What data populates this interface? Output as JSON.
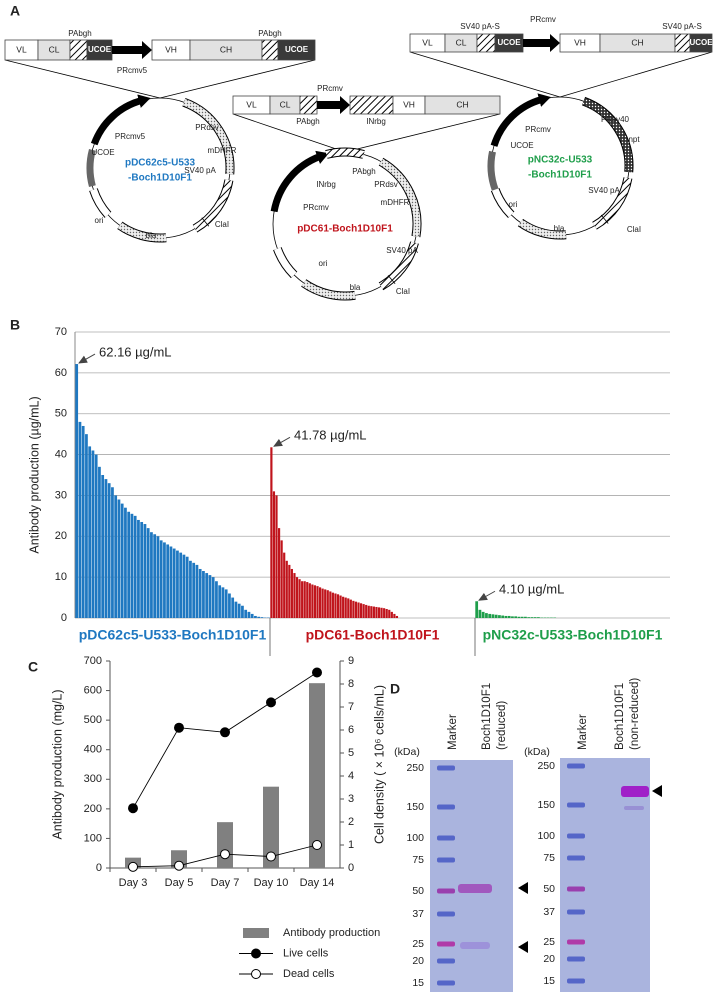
{
  "panel_labels": [
    "A",
    "B",
    "C",
    "D"
  ],
  "diagram": {
    "plasmids": [
      {
        "name": [
          "pDC62c5-U533",
          "-Boch1D10F1"
        ],
        "color": "#1f78c1",
        "cassette": [
          "VL",
          "CL",
          "UCOE",
          "VH",
          "CH",
          "UCOE"
        ],
        "cassette_labels": [
          "PAbgh",
          "PAbgh",
          "PRcmv5"
        ],
        "map_labels": [
          "PRcmv5",
          "PRdsv",
          "UCOE",
          "mDHFR",
          "SV40 pA",
          "ori",
          "bla",
          "ClaI"
        ]
      },
      {
        "name": [
          "pDC61-Boch1D10F1"
        ],
        "color": "#c0141c",
        "cassette": [
          "VL",
          "CL",
          "VH",
          "CH"
        ],
        "cassette_labels": [
          "PRcmv",
          "PAbgh",
          "INrbg"
        ],
        "map_labels": [
          "PAbgh",
          "INrbg",
          "PRdsv",
          "mDHFR",
          "PRcmv",
          "SV40 pA",
          "ori",
          "bla",
          "ClaI"
        ]
      },
      {
        "name": [
          "pNC32c-U533",
          "-Boch1D10F1"
        ],
        "color": "#1e9e4a",
        "cassette": [
          "VL",
          "CL",
          "UCOE",
          "VH",
          "CH",
          "UCOE"
        ],
        "cassette_labels": [
          "SV40 pA-S",
          "PRcmv",
          "SV40 pA-S"
        ],
        "map_labels": [
          "PRcmv",
          "PRsv40",
          "npt",
          "UCOE",
          "SV40 pA",
          "ori",
          "bla",
          "ClaI"
        ]
      }
    ]
  },
  "chart_data": [
    {
      "type": "bar",
      "ylabel": "Antibody production (µg/mL)",
      "ylim": [
        0,
        70
      ],
      "yticks": [
        0,
        10,
        20,
        30,
        40,
        50,
        60,
        70
      ],
      "grid": true,
      "annotations": [
        "62.16 µg/mL",
        "41.78 µg/mL",
        "4.10 µg/mL"
      ],
      "series": [
        {
          "name": "pDC62c5-U533-Boch1D10F1",
          "color": "#1f78c1",
          "values": [
            62.16,
            48,
            47,
            45,
            42,
            41,
            40,
            37,
            35,
            34,
            33,
            32,
            30,
            29,
            28,
            27,
            26,
            25.5,
            25,
            24,
            23.5,
            23,
            22,
            21,
            20.5,
            20,
            19,
            18.5,
            18,
            17.5,
            17,
            16.5,
            16,
            15.5,
            15,
            14,
            13.5,
            13,
            12,
            11.5,
            11,
            10.5,
            10,
            9,
            8,
            7.5,
            7,
            6,
            5,
            4,
            3.5,
            3,
            2,
            1.5,
            1,
            0.5,
            0.3,
            0.2,
            0.1,
            0.1
          ]
        },
        {
          "name": "pDC61-Boch1D10F1",
          "color": "#c0141c",
          "values": [
            41.78,
            31,
            30,
            22,
            19,
            16,
            14,
            13,
            12,
            11,
            10,
            9.5,
            9,
            9,
            8.8,
            8.5,
            8.2,
            8,
            7.8,
            7.5,
            7.2,
            7,
            6.8,
            6.5,
            6.2,
            6,
            5.8,
            5.5,
            5.2,
            5,
            4.8,
            4.5,
            4.2,
            4,
            3.8,
            3.6,
            3.4,
            3.2,
            3,
            2.9,
            2.8,
            2.7,
            2.6,
            2.5,
            2.4,
            2.2,
            2,
            1.5,
            1,
            0.5,
            0,
            0,
            0,
            0,
            0,
            0,
            0,
            0,
            0,
            0,
            0,
            0,
            0,
            0,
            0,
            0,
            0,
            0,
            0,
            0,
            0,
            0,
            0,
            0,
            0,
            0,
            0,
            0,
            0,
            0
          ]
        },
        {
          "name": "pNC32c-U533-Boch1D10F1",
          "color": "#1e9e4a",
          "values": [
            4.1,
            2,
            1.5,
            1.2,
            1,
            0.9,
            0.8,
            0.7,
            0.6,
            0.5,
            0.5,
            0.4,
            0.4,
            0.3,
            0.3,
            0.3,
            0.2,
            0.2,
            0.2,
            0.2,
            0.1,
            0.1,
            0.1,
            0.1,
            0.1,
            0,
            0,
            0,
            0,
            0,
            0,
            0,
            0,
            0,
            0,
            0,
            0,
            0,
            0,
            0,
            0,
            0,
            0,
            0,
            0,
            0,
            0,
            0,
            0,
            0,
            0,
            0,
            0,
            0,
            0,
            0,
            0,
            0,
            0,
            0
          ]
        }
      ]
    },
    {
      "type": "combo",
      "categories": [
        "Day 3",
        "Day 5",
        "Day 7",
        "Day 10",
        "Day 14"
      ],
      "ylabel": "Antibody production (mg/L)",
      "y2label": "Cell density ( × 10⁶ cells/mL)",
      "ylim": [
        0,
        700
      ],
      "yticks": [
        0,
        100,
        200,
        300,
        400,
        500,
        600,
        700
      ],
      "y2lim": [
        0,
        9
      ],
      "y2ticks": [
        0,
        1,
        2,
        3,
        4,
        5,
        6,
        7,
        8,
        9
      ],
      "legend": "bottom",
      "series": [
        {
          "name": "Antibody production",
          "type": "bar",
          "color": "#808080",
          "values": [
            35,
            60,
            155,
            275,
            625
          ]
        },
        {
          "name": "Live cells",
          "type": "line",
          "axis": "y2",
          "color": "#000000",
          "marker_fill": "#000000",
          "values": [
            2.6,
            6.1,
            5.9,
            7.2,
            8.5
          ]
        },
        {
          "name": "Dead cells",
          "type": "line",
          "axis": "y2",
          "color": "#000000",
          "marker_fill": "#ffffff",
          "values": [
            0.05,
            0.1,
            0.6,
            0.5,
            1.0
          ]
        }
      ]
    }
  ],
  "gel": {
    "kda_label": "(kDa)",
    "markers": [
      250,
      150,
      100,
      75,
      50,
      37,
      25,
      20,
      15
    ],
    "marker_colors": [
      "#5566c8",
      "#5566c8",
      "#5566c8",
      "#5566c8",
      "#9a3fae",
      "#5566c8",
      "#b03aa8",
      "#5566c8",
      "#5566c8"
    ],
    "gels": [
      {
        "lane_labels": [
          "Marker",
          "Boch1D10F1",
          "(reduced)"
        ]
      },
      {
        "lane_labels": [
          "Marker",
          "Boch1D10F1",
          "(non-reduced)"
        ]
      }
    ]
  }
}
